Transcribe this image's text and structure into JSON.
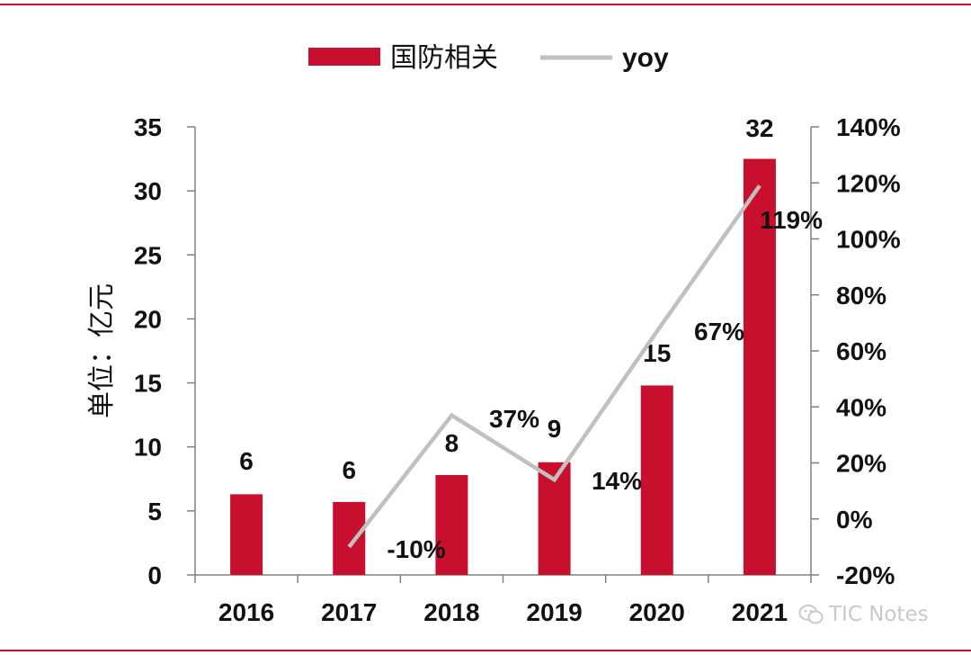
{
  "chart_data": {
    "type": "bar",
    "categories": [
      "2016",
      "2017",
      "2018",
      "2019",
      "2020",
      "2021"
    ],
    "series": [
      {
        "name": "国防相关",
        "type": "bar",
        "axis": "left",
        "color": "#c8102e",
        "values": [
          6.3,
          5.7,
          7.8,
          8.8,
          14.8,
          32.5
        ],
        "data_labels": [
          "6",
          "6",
          "8",
          "9",
          "15",
          "32"
        ]
      },
      {
        "name": "yoy",
        "type": "line",
        "axis": "right",
        "color": "#c0c0c0",
        "values": [
          null,
          -0.1,
          0.37,
          0.14,
          0.67,
          1.19
        ],
        "data_labels": [
          "",
          "-10%",
          "37%",
          "14%",
          "67%",
          "119%"
        ]
      }
    ],
    "ylabel": "单位：亿元",
    "ylim": [
      0,
      35
    ],
    "y_ticks": [
      "0",
      "5",
      "10",
      "15",
      "20",
      "25",
      "30",
      "35"
    ],
    "y2lim": [
      -0.2,
      1.4
    ],
    "y2_ticks": [
      "-20%",
      "0%",
      "20%",
      "40%",
      "60%",
      "80%",
      "100%",
      "120%",
      "140%"
    ],
    "grid": false,
    "legend": "top-center"
  },
  "watermark": "TIC Notes"
}
